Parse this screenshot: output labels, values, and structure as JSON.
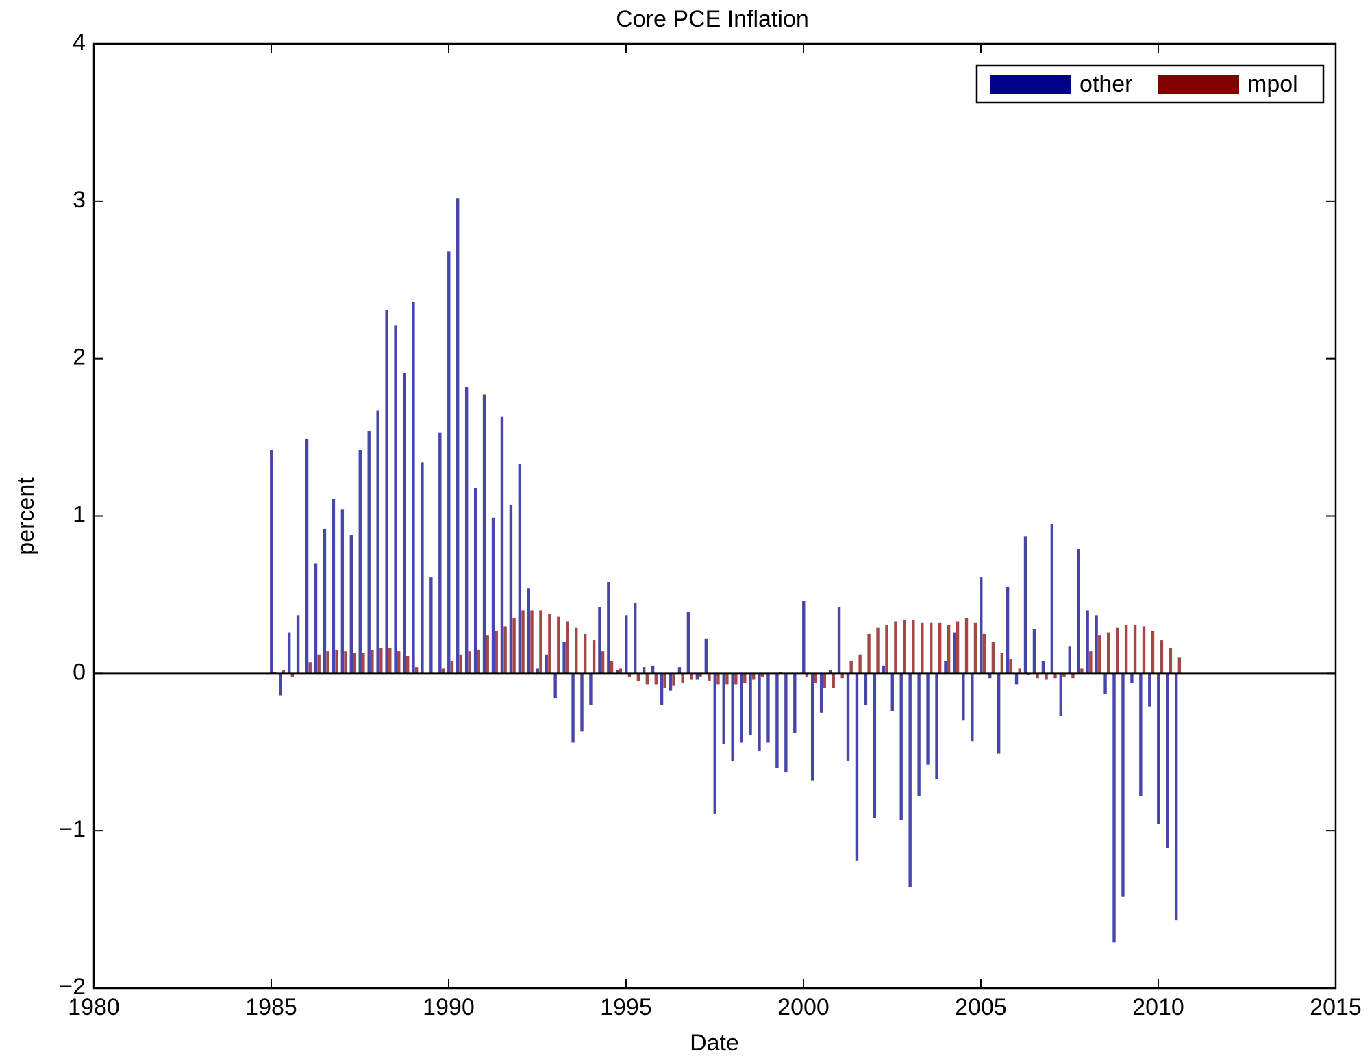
{
  "chart_data": {
    "type": "bar",
    "title": "Core PCE Inflation",
    "x_label": "Date",
    "y_label": "percent",
    "x": [
      1985,
      1985.25,
      1985.5,
      1985.75,
      1986,
      1986.25,
      1986.5,
      1986.75,
      1987,
      1987.25,
      1987.5,
      1987.75,
      1988,
      1988.25,
      1988.5,
      1988.75,
      1989,
      1989.25,
      1989.5,
      1989.75,
      1990,
      1990.25,
      1990.5,
      1990.75,
      1991,
      1991.25,
      1991.5,
      1991.75,
      1992,
      1992.25,
      1992.5,
      1992.75,
      1993,
      1993.25,
      1993.5,
      1993.75,
      1994,
      1994.25,
      1994.5,
      1994.75,
      1995,
      1995.25,
      1995.5,
      1995.75,
      1996,
      1996.25,
      1996.5,
      1996.75,
      1997,
      1997.25,
      1997.5,
      1997.75,
      1998,
      1998.25,
      1998.5,
      1998.75,
      1999,
      1999.25,
      1999.5,
      1999.75,
      2000,
      2000.25,
      2000.5,
      2000.75,
      2001,
      2001.25,
      2001.5,
      2001.75,
      2002,
      2002.25,
      2002.5,
      2002.75,
      2003,
      2003.25,
      2003.5,
      2003.75,
      2004,
      2004.25,
      2004.5,
      2004.75,
      2005,
      2005.25,
      2005.5,
      2005.75,
      2006,
      2006.25,
      2006.5,
      2006.75,
      2007,
      2007.25,
      2007.5,
      2007.75,
      2008,
      2008.25,
      2008.5,
      2008.75,
      2009,
      2009.25,
      2009.5,
      2009.75,
      2010,
      2010.25,
      2010.5
    ],
    "series": [
      {
        "name": "other",
        "color": "#00008b",
        "values": [
          1.42,
          -0.14,
          0.26,
          0.37,
          1.49,
          0.7,
          0.92,
          1.11,
          1.04,
          0.88,
          1.42,
          1.54,
          1.67,
          2.31,
          2.21,
          1.91,
          2.36,
          1.34,
          0.61,
          1.53,
          2.68,
          3.02,
          1.82,
          1.18,
          1.77,
          0.99,
          1.63,
          1.07,
          1.33,
          0.54,
          0.03,
          0.12,
          -0.16,
          0.2,
          -0.44,
          -0.37,
          -0.2,
          0.42,
          0.58,
          0.02,
          0.37,
          0.45,
          0.04,
          0.05,
          -0.2,
          -0.11,
          0.04,
          0.39,
          -0.04,
          0.22,
          -0.89,
          -0.45,
          -0.56,
          -0.44,
          -0.39,
          -0.49,
          -0.44,
          -0.6,
          -0.63,
          -0.38,
          0.46,
          -0.68,
          -0.25,
          0.02,
          0.42,
          -0.56,
          -1.19,
          -0.2,
          -0.92,
          0.05,
          -0.24,
          -0.93,
          -1.36,
          -0.78,
          -0.58,
          -0.67,
          0.08,
          0.26,
          -0.3,
          -0.43,
          0.61,
          -0.03,
          -0.51,
          0.55,
          -0.07,
          0.87,
          0.28,
          0.08,
          0.95,
          -0.27,
          0.17,
          0.79,
          0.4,
          0.37,
          -0.13,
          -1.71,
          -1.42,
          -0.06,
          -0.78,
          -0.21,
          -0.96,
          -1.11,
          -1.57
        ]
      },
      {
        "name": "mpol",
        "color": "#800000",
        "values": [
          0.01,
          0.02,
          -0.02,
          0.0,
          0.07,
          0.12,
          0.14,
          0.15,
          0.14,
          0.13,
          0.13,
          0.15,
          0.16,
          0.16,
          0.14,
          0.11,
          0.04,
          0.0,
          0.0,
          0.03,
          0.08,
          0.12,
          0.14,
          0.15,
          0.24,
          0.27,
          0.3,
          0.35,
          0.4,
          0.4,
          0.4,
          0.38,
          0.36,
          0.33,
          0.29,
          0.25,
          0.21,
          0.14,
          0.08,
          0.03,
          -0.02,
          -0.05,
          -0.07,
          -0.07,
          -0.09,
          -0.08,
          -0.06,
          -0.04,
          -0.02,
          -0.05,
          -0.07,
          -0.07,
          -0.07,
          -0.06,
          -0.04,
          -0.02,
          0.0,
          0.01,
          0.0,
          0.0,
          -0.02,
          -0.06,
          -0.09,
          -0.09,
          -0.03,
          0.08,
          0.12,
          0.25,
          0.29,
          0.31,
          0.33,
          0.34,
          0.34,
          0.32,
          0.32,
          0.32,
          0.31,
          0.33,
          0.35,
          0.32,
          0.25,
          0.2,
          0.13,
          0.09,
          0.03,
          -0.01,
          -0.03,
          -0.04,
          -0.03,
          -0.02,
          -0.03,
          0.03,
          0.14,
          0.24,
          0.26,
          0.29,
          0.31,
          0.31,
          0.3,
          0.27,
          0.21,
          0.16,
          0.1
        ]
      }
    ],
    "xlim": [
      1980,
      2015
    ],
    "xticks": [
      1980,
      1985,
      1990,
      1995,
      2000,
      2005,
      2010,
      2015
    ],
    "ylim": [
      -2,
      4
    ],
    "yticks": [
      {
        "value": -2,
        "label": "−2"
      },
      {
        "value": -1,
        "label": "−1"
      },
      0,
      1,
      2,
      3,
      4
    ],
    "grid": false,
    "legend": "upper right"
  }
}
